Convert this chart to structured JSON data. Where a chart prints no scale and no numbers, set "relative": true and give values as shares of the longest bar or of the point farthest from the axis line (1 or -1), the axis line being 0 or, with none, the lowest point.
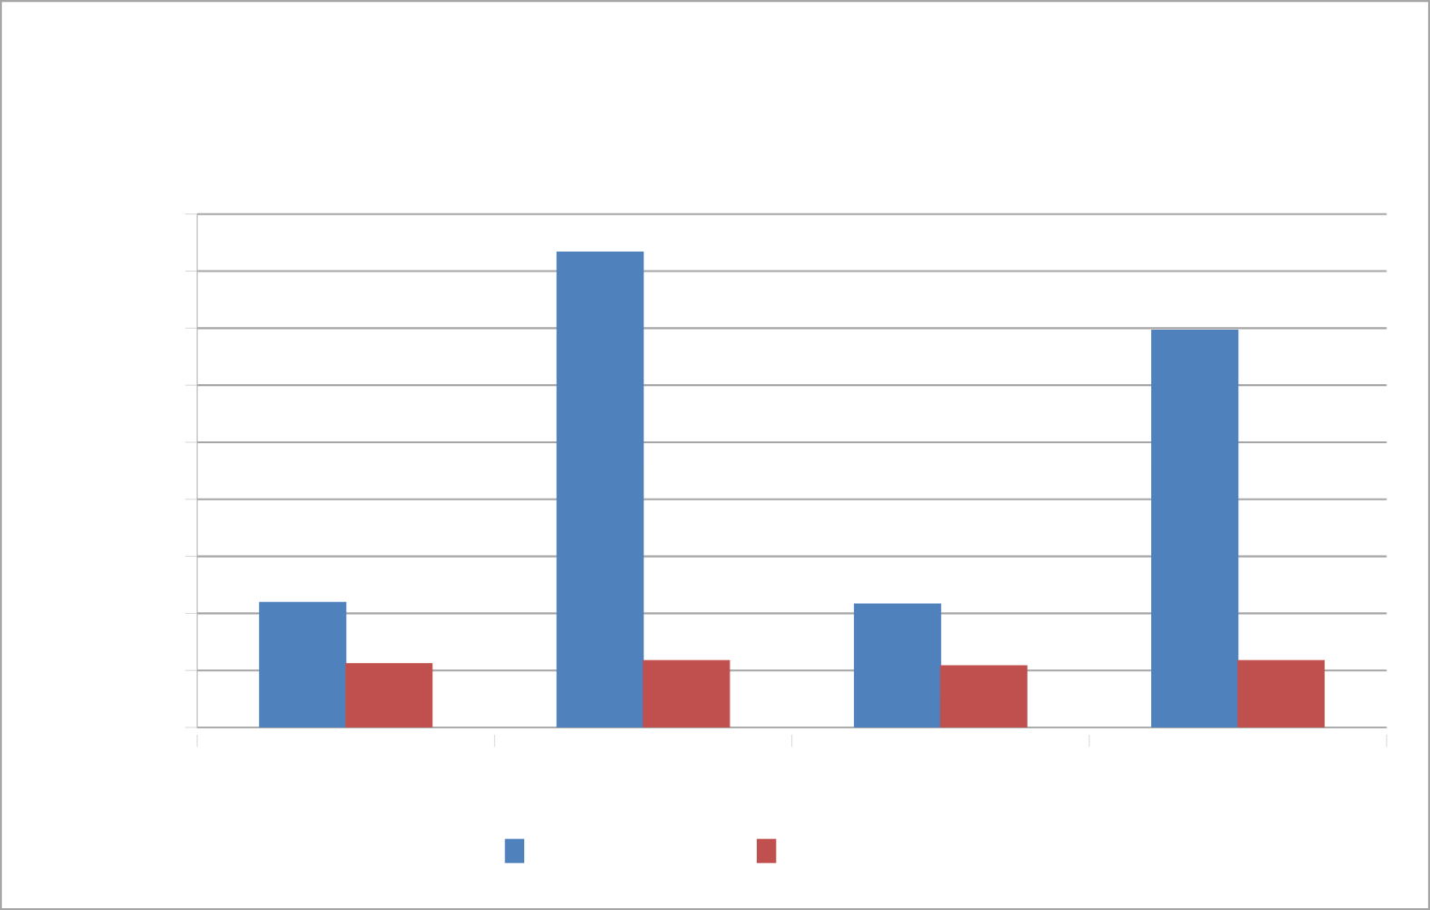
{
  "chart_data": {
    "type": "bar",
    "relative": true,
    "categories": [
      null,
      null,
      null,
      null
    ],
    "series": [
      {
        "color": "#4f81bd",
        "values": [
          0.263,
          1,
          0.26,
          0.836
        ]
      },
      {
        "color": "#c0504d",
        "values": [
          0.134,
          0.141,
          0.13,
          0.141
        ]
      }
    ],
    "grid": "y"
  }
}
